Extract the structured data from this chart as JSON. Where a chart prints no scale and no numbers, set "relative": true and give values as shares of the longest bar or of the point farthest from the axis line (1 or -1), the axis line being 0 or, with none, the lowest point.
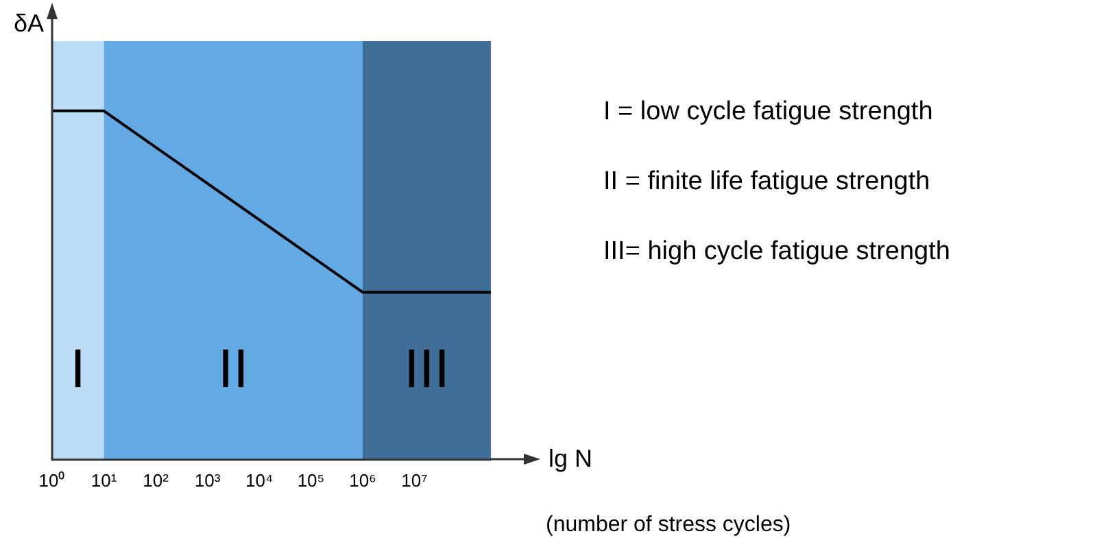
{
  "chart_data": {
    "type": "line",
    "xlabel": "lg N",
    "ylabel": "δA",
    "relative": true,
    "log": "x",
    "marker": "none",
    "line_style": "solid",
    "grid": false,
    "legend": false,
    "xlim": [
      1,
      300000000
    ],
    "xticks": [
      {
        "value": 1,
        "label": "10⁰"
      },
      {
        "value": 10,
        "label": "10¹"
      },
      {
        "value": 100,
        "label": "10²"
      },
      {
        "value": 1000,
        "label": "10³"
      },
      {
        "value": 10000,
        "label": "10⁴"
      },
      {
        "value": 100000,
        "label": "10⁵"
      },
      {
        "value": 1000000,
        "label": "10⁶"
      },
      {
        "value": 10000000,
        "label": "10⁷"
      }
    ],
    "series": [
      {
        "color": "#000000",
        "x": [
          1,
          10,
          1000000,
          300000000
        ],
        "values": [
          1,
          1,
          0.48,
          0.48
        ]
      }
    ],
    "bands": [
      {
        "axis": "x",
        "from": 1,
        "to": 10,
        "label": "I",
        "color": "#badcf5"
      },
      {
        "axis": "x",
        "from": 10,
        "to": 1000000,
        "label": "II",
        "color": "#63a9e3"
      },
      {
        "axis": "x",
        "from": 1000000,
        "to": 300000000,
        "label": "III",
        "color": "#3f6f98"
      }
    ],
    "annotations": [
      "I = low cycle fatigue strength",
      "II = finite life fatigue strength",
      "III= high cycle fatigue strength",
      "(number of stress cycles)"
    ]
  }
}
